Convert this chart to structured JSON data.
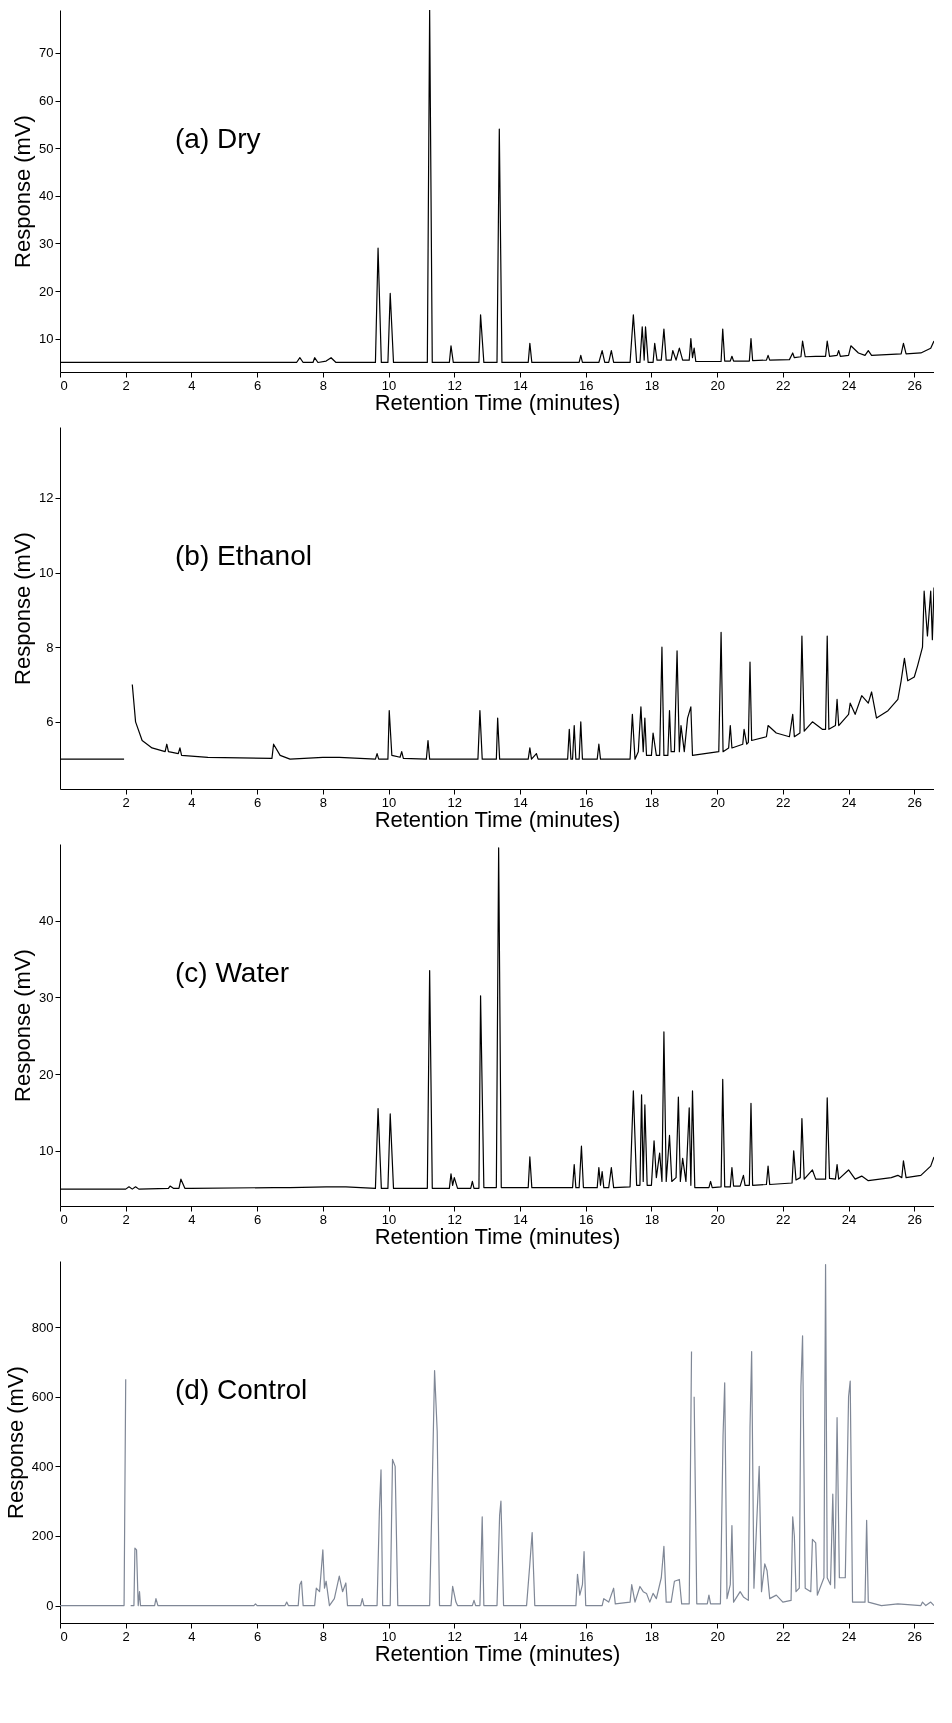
{
  "chart_data": [
    {
      "type": "line",
      "xlabel": "Retention Time (minutes)",
      "ylabel": "Response (mV)",
      "annotations": [
        "(a) Dry"
      ],
      "xlim": [
        0,
        26.6
      ],
      "xticks": [
        0,
        2,
        4,
        6,
        8,
        10,
        12,
        14,
        16,
        18,
        20,
        22,
        24,
        26
      ],
      "ylim": [
        3,
        79
      ],
      "yticks": [
        10,
        20,
        30,
        40,
        50,
        60,
        70
      ],
      "x": [
        0,
        7.2,
        7.3,
        7.4,
        7.7,
        7.75,
        7.85,
        8.1,
        8.25,
        8.4,
        9.6,
        9.68,
        9.78,
        9.98,
        10.05,
        10.15,
        11.18,
        11.25,
        11.33,
        11.85,
        11.9,
        11.97,
        12.75,
        12.8,
        12.9,
        13.3,
        13.37,
        13.45,
        14.25,
        14.3,
        14.36,
        15.8,
        15.85,
        15.9,
        16.4,
        16.5,
        16.58,
        16.7,
        16.78,
        16.85,
        17.35,
        17.45,
        17.55,
        17.65,
        17.72,
        17.78,
        17.82,
        17.9,
        18.05,
        18.1,
        18.17,
        18.3,
        18.38,
        18.45,
        18.6,
        18.65,
        18.75,
        18.85,
        18.95,
        19.15,
        19.2,
        19.25,
        19.3,
        19.35,
        20.12,
        20.17,
        20.23,
        20.4,
        20.45,
        20.5,
        20.98,
        21.03,
        21.08,
        21.5,
        21.55,
        21.6,
        22.2,
        22.3,
        22.35,
        22.55,
        22.6,
        22.68,
        23.0,
        23.3,
        23.35,
        23.42,
        23.65,
        23.7,
        23.75,
        24.0,
        24.07,
        24.3,
        24.5,
        24.6,
        24.7,
        25.6,
        25.67,
        25.75,
        26.2,
        26.5,
        26.6
      ],
      "series": [
        {
          "color": "#000000",
          "values": [
            5,
            5,
            6,
            5,
            5,
            6,
            5,
            5.3,
            6,
            5,
            5,
            29,
            5,
            5,
            19.5,
            5,
            5,
            79,
            5,
            5,
            8.5,
            5,
            5,
            15,
            5,
            5,
            54,
            5,
            5,
            9,
            5,
            5,
            6.5,
            5,
            5,
            7.5,
            5,
            5,
            7.5,
            5,
            5,
            15,
            5,
            5,
            12.5,
            5.5,
            12.5,
            5,
            5,
            9,
            5.5,
            5.5,
            12,
            5.5,
            5.5,
            7.5,
            5.5,
            8,
            5.5,
            5.5,
            10,
            6,
            8,
            5.2,
            5.2,
            12,
            5.3,
            5.3,
            6.3,
            5.3,
            5.3,
            10,
            5.4,
            5.5,
            6.5,
            5.5,
            5.6,
            7,
            6,
            6.2,
            9.5,
            6.2,
            6.3,
            6.3,
            9.5,
            6.3,
            6.5,
            7.5,
            6.3,
            6.5,
            8.5,
            7,
            6.5,
            7.5,
            6.5,
            6.8,
            9,
            6.8,
            7,
            8,
            9.5
          ]
        }
      ]
    },
    {
      "type": "line",
      "xlabel": "Retention Time (minutes)",
      "ylabel": "Response (mV)",
      "annotations": [
        "(b) Ethanol"
      ],
      "xlim": [
        0,
        26.6
      ],
      "xticks": [
        2,
        4,
        6,
        8,
        10,
        12,
        14,
        16,
        18,
        20,
        22,
        24,
        26
      ],
      "ylim": [
        4.2,
        13.9
      ],
      "yticks": [
        6,
        8,
        10,
        12
      ],
      "x": [
        0,
        1.95,
        2.0,
        2.15,
        2.2,
        2.3,
        2.5,
        2.8,
        3.2,
        3.25,
        3.3,
        3.6,
        3.65,
        3.7,
        4.5,
        6.45,
        6.5,
        6.7,
        7.0,
        8.0,
        8.5,
        9.6,
        9.65,
        9.7,
        9.98,
        10.02,
        10.1,
        10.35,
        10.4,
        10.45,
        11.15,
        11.2,
        11.25,
        12.72,
        12.78,
        12.85,
        13.28,
        13.32,
        13.38,
        14.25,
        14.3,
        14.35,
        14.5,
        14.55,
        15.45,
        15.5,
        15.55,
        15.6,
        15.65,
        15.7,
        15.8,
        15.85,
        15.9,
        16.35,
        16.4,
        16.45,
        17.35,
        17.42,
        17.5,
        17.6,
        17.68,
        17.75,
        17.8,
        17.85,
        18.0,
        18.05,
        18.15,
        18.25,
        18.32,
        18.38,
        18.5,
        18.55,
        18.6,
        18.7,
        18.78,
        18.85,
        18.9,
        19.0,
        19.1,
        19.2,
        19.25,
        20.05,
        20.12,
        20.18,
        20.35,
        20.4,
        20.45,
        20.78,
        20.82,
        20.9,
        20.95,
        21.0,
        21.05,
        21.5,
        21.55,
        21.8,
        22.2,
        22.3,
        22.35,
        22.52,
        22.58,
        22.65,
        22.9,
        23.2,
        23.3,
        23.35,
        23.4,
        23.6,
        23.65,
        23.7,
        24.0,
        24.05,
        24.2,
        24.4,
        24.6,
        24.7,
        24.85,
        25.2,
        25.5,
        25.6,
        25.7,
        25.8,
        26.0,
        26.1,
        26.25,
        26.3,
        26.4,
        26.5,
        26.55,
        26.6
      ],
      "series": [
        {
          "color": "#000000",
          "values": [
            5,
            5,
            null,
            null,
            7,
            6,
            5.5,
            5.3,
            5.2,
            5.4,
            5.2,
            5.15,
            5.3,
            5.1,
            5.05,
            5.02,
            5.4,
            5.1,
            5.0,
            5.05,
            5.05,
            5.0,
            5.15,
            5.0,
            5,
            6.3,
            5.1,
            5.05,
            5.2,
            5.02,
            5,
            5.5,
            5.0,
            5,
            6.3,
            5,
            5,
            6.1,
            5,
            5,
            5.3,
            5.0,
            5.15,
            5.0,
            5,
            5.8,
            5.0,
            5.0,
            5.9,
            5.0,
            5.0,
            6.0,
            5.0,
            5.0,
            5.4,
            5.0,
            5.0,
            6.2,
            5.0,
            5.2,
            6.4,
            5.2,
            6.1,
            5.1,
            5.1,
            5.7,
            5.1,
            5.1,
            8.0,
            5.1,
            5.1,
            6.3,
            5.2,
            5.2,
            7.9,
            5.2,
            5.9,
            5.2,
            6.1,
            6.4,
            5.1,
            5.2,
            8.4,
            5.2,
            5.3,
            5.9,
            5.3,
            5.4,
            5.8,
            5.4,
            5.45,
            7.6,
            5.5,
            5.6,
            5.9,
            5.7,
            5.6,
            6.2,
            5.6,
            5.7,
            8.3,
            5.75,
            6.0,
            5.8,
            5.8,
            8.3,
            5.8,
            5.9,
            6.6,
            5.9,
            6.2,
            6.5,
            6.2,
            6.7,
            6.5,
            6.8,
            6.1,
            6.3,
            6.6,
            7.1,
            7.7,
            7.1,
            7.2,
            7.5,
            8.0,
            9.5,
            8.3,
            9.5,
            8.2,
            9.6
          ]
        }
      ]
    },
    {
      "type": "line",
      "xlabel": "Retention Time (minutes)",
      "ylabel": "Response (mV)",
      "annotations": [
        "(c) Water"
      ],
      "xlim": [
        0,
        26.6
      ],
      "xticks": [
        0,
        2,
        4,
        6,
        8,
        10,
        12,
        14,
        16,
        18,
        20,
        22,
        24,
        26
      ],
      "ylim": [
        2.8,
        50
      ],
      "yticks": [
        10,
        20,
        30,
        40
      ],
      "x": [
        0,
        2.0,
        2.1,
        2.2,
        2.3,
        2.4,
        3.3,
        3.35,
        3.45,
        3.62,
        3.68,
        3.8,
        4.0,
        6.5,
        7.0,
        8.1,
        8.7,
        9.6,
        9.68,
        9.78,
        9.98,
        10.05,
        10.15,
        11.18,
        11.25,
        11.33,
        11.85,
        11.9,
        11.95,
        12.0,
        12.1,
        12.5,
        12.55,
        12.6,
        12.75,
        12.8,
        12.9,
        13.28,
        13.35,
        13.43,
        14.25,
        14.3,
        14.36,
        15.6,
        15.65,
        15.7,
        15.8,
        15.87,
        15.93,
        16.35,
        16.4,
        16.45,
        16.5,
        16.55,
        16.7,
        16.78,
        16.85,
        17.35,
        17.45,
        17.55,
        17.65,
        17.7,
        17.75,
        17.8,
        17.87,
        18.0,
        18.08,
        18.15,
        18.25,
        18.32,
        18.38,
        18.45,
        18.55,
        18.62,
        18.75,
        18.82,
        18.88,
        18.95,
        19.05,
        19.15,
        19.2,
        19.25,
        19.32,
        19.75,
        19.8,
        19.85,
        20.12,
        20.17,
        20.23,
        20.4,
        20.45,
        20.5,
        20.7,
        20.8,
        20.85,
        20.98,
        21.03,
        21.08,
        21.5,
        21.55,
        21.6,
        22.28,
        22.33,
        22.4,
        22.53,
        22.58,
        22.65,
        22.9,
        23.0,
        23.3,
        23.35,
        23.42,
        23.6,
        23.65,
        23.7,
        24.0,
        24.2,
        24.4,
        24.6,
        25.3,
        25.5,
        25.62,
        25.67,
        25.75,
        26.2,
        26.5,
        26.6
      ],
      "series": [
        {
          "color": "#000000",
          "values": [
            5,
            5,
            5.3,
            5,
            5.3,
            5,
            5.1,
            5.4,
            5.1,
            5.1,
            6.3,
            5.1,
            5.1,
            5.2,
            5.2,
            5.3,
            5.3,
            5.1,
            15.5,
            5.1,
            5.1,
            14.8,
            5.1,
            5.1,
            33.5,
            5.1,
            5.1,
            7,
            5.5,
            6.5,
            5.1,
            5.1,
            6,
            5.1,
            5.1,
            30.2,
            5.2,
            5.2,
            49.5,
            5.2,
            5.2,
            9.2,
            5.2,
            5.2,
            8.2,
            5.2,
            5.2,
            10.6,
            5.2,
            5.2,
            7.8,
            5.5,
            7.3,
            5.2,
            5.2,
            7.8,
            5.2,
            5.3,
            17.8,
            5.5,
            5.5,
            17.3,
            6,
            16,
            5.5,
            5.5,
            11.3,
            6.5,
            9.7,
            6,
            25.5,
            6,
            12,
            6,
            6.5,
            17,
            6,
            9,
            6,
            15.6,
            5.5,
            17.8,
            5.2,
            5.2,
            6,
            5.2,
            5.3,
            19.3,
            5.3,
            5.3,
            7.8,
            5.4,
            5.4,
            6.8,
            5.5,
            5.5,
            16.2,
            5.5,
            5.6,
            8,
            5.6,
            5.8,
            10,
            6.2,
            6.5,
            14.2,
            6.3,
            7.5,
            6.3,
            6.3,
            16.9,
            6.4,
            6.3,
            8.2,
            6.3,
            7.5,
            6.3,
            6.7,
            6.1,
            6.5,
            6.8,
            6.5,
            8.7,
            6.5,
            6.8,
            8,
            9.2
          ]
        }
      ]
    },
    {
      "type": "line",
      "xlabel": "Retention Time (minutes)",
      "ylabel": "Response (mV)",
      "annotations": [
        "(d) Control"
      ],
      "xlim": [
        0,
        26.6
      ],
      "xticks": [
        0,
        2,
        4,
        6,
        8,
        10,
        12,
        14,
        16,
        18,
        20,
        22,
        24,
        26
      ],
      "ylim": [
        -50,
        990
      ],
      "yticks": [
        0,
        200,
        400,
        600,
        800
      ],
      "x": [
        0,
        1.95,
        2.0,
        2.02,
        2.1,
        2.15,
        2.25,
        2.28,
        2.33,
        2.38,
        2.42,
        2.45,
        2.88,
        2.92,
        2.98,
        5.9,
        5.95,
        6.0,
        6.85,
        6.9,
        6.95,
        7.25,
        7.3,
        7.35,
        7.4,
        7.75,
        7.8,
        7.9,
        8.0,
        8.05,
        8.1,
        8.2,
        8.35,
        8.5,
        8.6,
        8.7,
        8.75,
        9.15,
        9.2,
        9.25,
        9.65,
        9.72,
        9.77,
        9.82,
        10.05,
        10.12,
        10.2,
        10.28,
        11.25,
        11.32,
        11.4,
        11.48,
        11.55,
        11.9,
        11.95,
        12.05,
        12.1,
        12.55,
        12.6,
        12.65,
        12.78,
        12.85,
        12.9,
        13.3,
        13.38,
        13.42,
        13.5,
        14.2,
        14.3,
        14.37,
        14.45,
        15.7,
        15.75,
        15.82,
        15.9,
        15.95,
        16.0,
        16.5,
        16.55,
        16.7,
        16.85,
        16.9,
        17.35,
        17.4,
        17.5,
        17.65,
        17.75,
        17.85,
        17.95,
        18.05,
        18.15,
        18.3,
        18.38,
        18.45,
        18.6,
        18.7,
        18.85,
        18.92,
        19.15,
        19.22,
        19.25,
        19.3,
        19.38,
        19.7,
        19.75,
        19.8,
        20.1,
        20.18,
        20.23,
        20.3,
        20.4,
        20.45,
        20.5,
        20.7,
        20.8,
        20.95,
        21.0,
        21.05,
        21.12,
        21.2,
        21.28,
        21.35,
        21.45,
        21.52,
        21.6,
        21.8,
        22.0,
        22.25,
        22.3,
        22.35,
        22.4,
        22.5,
        22.55,
        22.6,
        22.68,
        22.85,
        22.9,
        23.0,
        23.05,
        23.25,
        23.3,
        23.35,
        23.45,
        23.52,
        23.58,
        23.65,
        23.72,
        23.9,
        24.0,
        24.05,
        24.12,
        24.5,
        24.55,
        24.6,
        25.0,
        25.5,
        26.2,
        26.25,
        26.35,
        26.5,
        26.6
      ],
      "series": [
        {
          "color": "#7f8796",
          "values": [
            0,
            0,
            650,
            null,
            null,
            0,
            0,
            165,
            160,
            0,
            40,
            0,
            0,
            20,
            0,
            0,
            5,
            0,
            0,
            10,
            0,
            0,
            60,
            70,
            0,
            0,
            50,
            40,
            160,
            50,
            70,
            0,
            20,
            85,
            40,
            65,
            0,
            0,
            20,
            0,
            0,
            270,
            390,
            0,
            0,
            420,
            400,
            0,
            0,
            300,
            675,
            500,
            0,
            0,
            55,
            10,
            0,
            0,
            15,
            0,
            0,
            255,
            0,
            0,
            260,
            300,
            0,
            0,
            120,
            210,
            0,
            0,
            90,
            30,
            60,
            155,
            0,
            0,
            20,
            10,
            50,
            5,
            10,
            60,
            10,
            55,
            40,
            35,
            10,
            35,
            20,
            80,
            170,
            10,
            10,
            70,
            75,
            5,
            5,
            730,
            null,
            600,
            5,
            5,
            30,
            5,
            5,
            490,
            640,
            20,
            60,
            230,
            10,
            40,
            25,
            15,
            510,
            730,
            50,
            230,
            400,
            40,
            120,
            100,
            20,
            30,
            10,
            15,
            255,
            200,
            40,
            50,
            630,
            775,
            50,
            40,
            190,
            180,
            30,
            80,
            980,
            80,
            60,
            320,
            50,
            540,
            80,
            80,
            600,
            645,
            10,
            10,
            245,
            10,
            0,
            5,
            0,
            10,
            0,
            10,
            0
          ]
        }
      ]
    }
  ]
}
